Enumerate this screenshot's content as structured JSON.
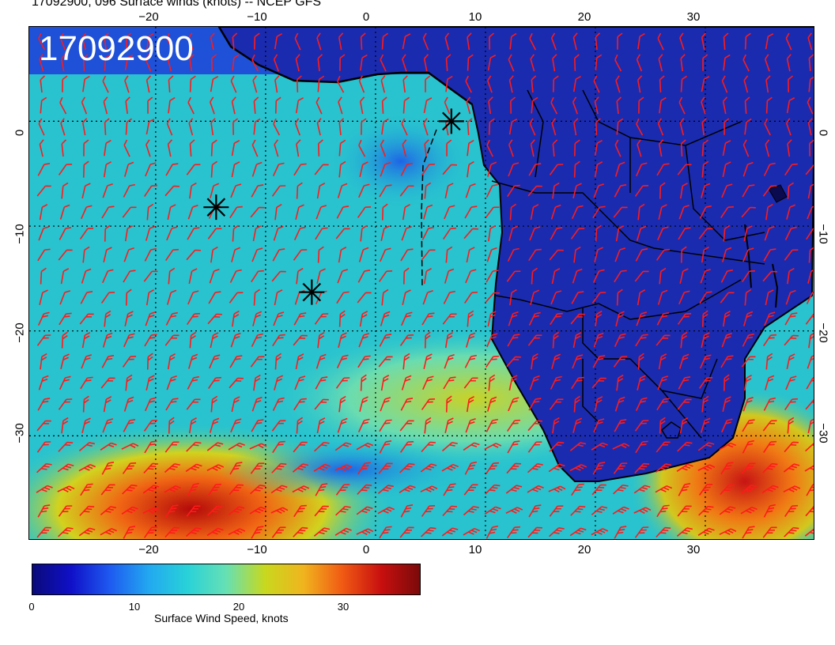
{
  "title": "17092900, 096 Surface winds (knots) -- NCEP GFS",
  "stamp": "17092900",
  "lon_ticks": [
    "−20",
    "−10",
    "0",
    "10",
    "20",
    "30"
  ],
  "lat_ticks": [
    "0",
    "−10",
    "−20",
    "−30"
  ],
  "colorbar": {
    "label": "Surface Wind Speed, knots",
    "ticks": [
      "0",
      "10",
      "20",
      "30"
    ],
    "range": [
      0,
      36
    ],
    "colors": [
      "#0a0a7a",
      "#1010c8",
      "#1e5af0",
      "#22a8f0",
      "#28d2d8",
      "#66e0b4",
      "#c8d81e",
      "#f0b41e",
      "#f05a14",
      "#c80f0f",
      "#7a0a0a"
    ]
  },
  "map": {
    "projection": "equirectangular",
    "lon_range": [
      -31.5,
      40
    ],
    "lat_range": [
      -40,
      9
    ],
    "ocean_color": "#28c3cf",
    "land_color": "#1a2bb0",
    "barb_color": "#ff1a1a",
    "storm_markers": [
      {
        "lon": 6.9,
        "lat": 0.0
      },
      {
        "lon": -14.5,
        "lat": -8.2
      },
      {
        "lon": -5.8,
        "lat": -16.3
      }
    ]
  }
}
